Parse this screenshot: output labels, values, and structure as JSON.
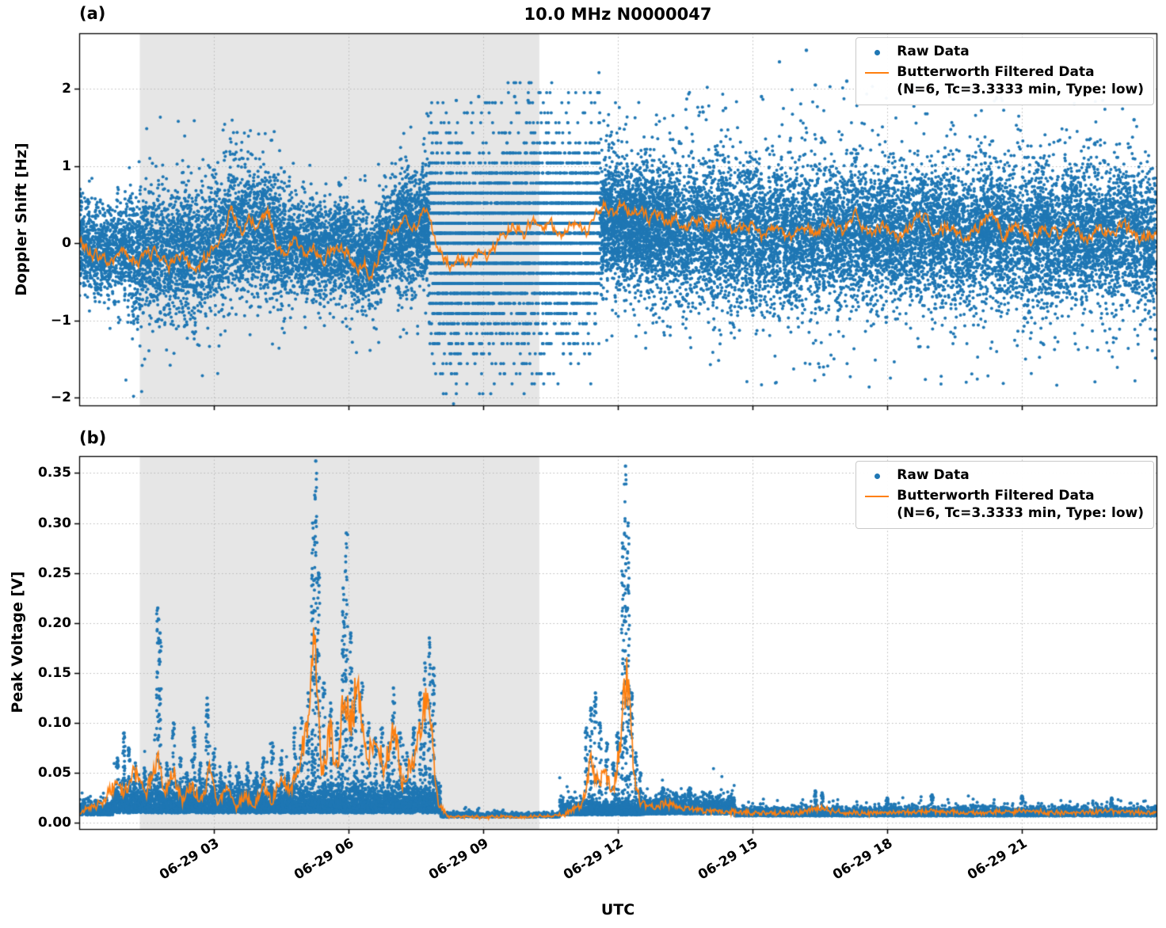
{
  "figure": {
    "title": "10.0 MHz N0000047",
    "xlabel": "UTC",
    "panel_labels": [
      "(a)",
      "(b)"
    ],
    "legend": {
      "raw_label": "Raw Data",
      "filtered_label": "Butterworth Filtered Data",
      "filtered_sublabel": "(N=6, Tc=3.3333 min, Type: low)"
    },
    "colors": {
      "raw": "#1f77b4",
      "filtered": "#ff7f0e",
      "shade": "#e6e6e6",
      "grid": "#b8b8b8",
      "spine": "#000000"
    }
  },
  "chart_data": [
    {
      "type": "scatter",
      "panel": "a",
      "ylabel": "Doppler Shift [Hz]",
      "ylim": [
        -2.1,
        2.72
      ],
      "yticks": [
        -2,
        -1,
        0,
        1,
        2
      ],
      "ytick_labels": [
        "−2",
        "−1",
        "0",
        "1",
        "2"
      ],
      "xlim_hours": [
        0,
        24
      ],
      "xticks_hours": [
        3,
        6,
        9,
        12,
        15,
        18,
        21
      ],
      "xtick_labels": [
        "06-29 03",
        "06-29 06",
        "06-29 09",
        "06-29 12",
        "06-29 15",
        "06-29 18",
        "06-29 21"
      ],
      "shaded_region_hours": [
        1.35,
        10.25
      ],
      "grid": true,
      "legend_position": "upper right",
      "series_names": [
        "Raw Data",
        "Butterworth Filtered Data (N=6, Tc=3.3333 min, Type: low)"
      ],
      "raw_scatter_segments": [
        {
          "t0": 0.0,
          "t1": 1.0,
          "n": 800,
          "std": 0.3,
          "outlier_frac": 0.01,
          "outlier_max": 1.2
        },
        {
          "t0": 1.0,
          "t1": 3.1,
          "n": 1900,
          "std": 0.4,
          "outlier_frac": 0.02,
          "outlier_max": 1.9
        },
        {
          "t0": 3.1,
          "t1": 4.6,
          "n": 1400,
          "std": 0.42,
          "outlier_frac": 0.015,
          "outlier_max": 1.5
        },
        {
          "t0": 4.6,
          "t1": 6.3,
          "n": 1500,
          "std": 0.33,
          "outlier_frac": 0.01,
          "outlier_max": 1.3
        },
        {
          "t0": 6.3,
          "t1": 7.1,
          "n": 700,
          "std": 0.3,
          "outlier_frac": 0.01,
          "outlier_max": 1.2
        },
        {
          "t0": 7.1,
          "t1": 7.8,
          "n": 900,
          "std": 0.38,
          "outlier_frac": 0.02,
          "outlier_max": 1.6
        },
        {
          "t0": 7.8,
          "t1": 11.6,
          "n": 5200,
          "std": 0.58,
          "quantize": 0.13,
          "outlier_frac": 0.03,
          "outlier_max": 1.95
        },
        {
          "t0": 11.6,
          "t1": 13.2,
          "n": 2300,
          "std": 0.4,
          "outlier_frac": 0.015,
          "outlier_max": 1.6
        },
        {
          "t0": 13.2,
          "t1": 24.0,
          "n": 11000,
          "std": 0.45,
          "outlier_frac": 0.02,
          "outlier_max": 1.95
        }
      ],
      "raw_extra_points": [
        [
          15.6,
          2.35
        ],
        [
          16.2,
          2.5
        ],
        [
          16.4,
          2.05
        ],
        [
          17.1,
          2.1
        ],
        [
          15.2,
          1.9
        ],
        [
          18.6,
          1.95
        ],
        [
          19.4,
          1.9
        ],
        [
          20.3,
          2.2
        ],
        [
          21.0,
          2.0
        ],
        [
          22.8,
          1.85
        ],
        [
          23.5,
          1.6
        ],
        [
          14.4,
          1.75
        ],
        [
          13.9,
          1.7
        ],
        [
          9.7,
          1.9
        ],
        [
          10.0,
          1.85
        ],
        [
          8.4,
          1.85
        ],
        [
          8.9,
          1.9
        ]
      ],
      "filtered_line_points": [
        [
          0,
          0.05
        ],
        [
          0.3,
          -0.15
        ],
        [
          0.7,
          -0.2
        ],
        [
          1,
          -0.1
        ],
        [
          1.3,
          -0.25
        ],
        [
          1.7,
          -0.1
        ],
        [
          2,
          -0.3
        ],
        [
          2.3,
          -0.15
        ],
        [
          2.6,
          -0.35
        ],
        [
          2.9,
          -0.1
        ],
        [
          3.2,
          0.1
        ],
        [
          3.4,
          0.45
        ],
        [
          3.6,
          0.1
        ],
        [
          3.8,
          0.35
        ],
        [
          4,
          0.2
        ],
        [
          4.2,
          0.45
        ],
        [
          4.4,
          0
        ],
        [
          4.6,
          -0.15
        ],
        [
          4.8,
          0.1
        ],
        [
          5,
          -0.2
        ],
        [
          5.2,
          -0.05
        ],
        [
          5.4,
          -0.25
        ],
        [
          5.6,
          -0.1
        ],
        [
          5.8,
          -0.05
        ],
        [
          6,
          -0.15
        ],
        [
          6.2,
          -0.4
        ],
        [
          6.35,
          -0.2
        ],
        [
          6.5,
          -0.5
        ],
        [
          6.7,
          -0.1
        ],
        [
          6.9,
          0.15
        ],
        [
          7.1,
          0.25
        ],
        [
          7.3,
          0.35
        ],
        [
          7.5,
          0.2
        ],
        [
          7.7,
          0.45
        ],
        [
          7.9,
          0.1
        ],
        [
          8.1,
          -0.15
        ],
        [
          8.3,
          -0.3
        ],
        [
          8.5,
          -0.2
        ],
        [
          8.7,
          -0.25
        ],
        [
          8.9,
          -0.1
        ],
        [
          9.1,
          -0.2
        ],
        [
          9.3,
          0
        ],
        [
          9.5,
          0.15
        ],
        [
          9.7,
          0.25
        ],
        [
          9.9,
          0.1
        ],
        [
          10.1,
          0.3
        ],
        [
          10.3,
          0.15
        ],
        [
          10.5,
          0.25
        ],
        [
          10.7,
          0.1
        ],
        [
          10.9,
          0.2
        ],
        [
          11.1,
          0.3
        ],
        [
          11.3,
          0.15
        ],
        [
          11.5,
          0.35
        ],
        [
          11.7,
          0.5
        ],
        [
          11.9,
          0.4
        ],
        [
          12.1,
          0.55
        ],
        [
          12.3,
          0.35
        ],
        [
          12.5,
          0.45
        ],
        [
          12.7,
          0.3
        ],
        [
          12.9,
          0.4
        ],
        [
          13.1,
          0.25
        ],
        [
          13.3,
          0.35
        ],
        [
          13.5,
          0.2
        ],
        [
          13.7,
          0.3
        ],
        [
          14,
          0.2
        ],
        [
          14.3,
          0.3
        ],
        [
          14.6,
          0.15
        ],
        [
          14.9,
          0.25
        ],
        [
          15.2,
          0.1
        ],
        [
          15.5,
          0.2
        ],
        [
          15.8,
          0.05
        ],
        [
          16.1,
          0.25
        ],
        [
          16.4,
          0.1
        ],
        [
          16.7,
          0.3
        ],
        [
          17,
          0.15
        ],
        [
          17.3,
          0.35
        ],
        [
          17.6,
          0.1
        ],
        [
          17.9,
          0.25
        ],
        [
          18.2,
          0.05
        ],
        [
          18.5,
          0.2
        ],
        [
          18.8,
          0.35
        ],
        [
          19.1,
          0.1
        ],
        [
          19.4,
          0.25
        ],
        [
          19.7,
          0.05
        ],
        [
          20,
          0.2
        ],
        [
          20.3,
          0.4
        ],
        [
          20.6,
          0.1
        ],
        [
          20.9,
          0.25
        ],
        [
          21.2,
          0.05
        ],
        [
          21.5,
          0.2
        ],
        [
          21.8,
          0.1
        ],
        [
          22.1,
          0.3
        ],
        [
          22.4,
          0.05
        ],
        [
          22.7,
          0.2
        ],
        [
          23,
          0.1
        ],
        [
          23.3,
          0.25
        ],
        [
          23.6,
          0.05
        ],
        [
          24,
          0.15
        ]
      ]
    },
    {
      "type": "scatter",
      "panel": "b",
      "ylabel": "Peak Voltage [V]",
      "ylim": [
        -0.006,
        0.367
      ],
      "yticks": [
        0.0,
        0.05,
        0.1,
        0.15,
        0.2,
        0.25,
        0.3,
        0.35
      ],
      "ytick_labels": [
        "0.00",
        "0.05",
        "0.10",
        "0.15",
        "0.20",
        "0.25",
        "0.30",
        "0.35"
      ],
      "xlim_hours": [
        0,
        24
      ],
      "xticks_hours": [
        3,
        6,
        9,
        12,
        15,
        18,
        21
      ],
      "xtick_labels": [
        "06-29 03",
        "06-29 06",
        "06-29 09",
        "06-29 12",
        "06-29 15",
        "06-29 18",
        "06-29 21"
      ],
      "shaded_region_hours": [
        1.35,
        10.25
      ],
      "grid": true,
      "legend_position": "upper right",
      "series_names": [
        "Raw Data",
        "Butterworth Filtered Data (N=6, Tc=3.3333 min, Type: low)"
      ],
      "baseline_segments": [
        {
          "t0": 0.0,
          "t1": 0.75,
          "n": 500,
          "base": 0.008,
          "spread": 0.006
        },
        {
          "t0": 0.75,
          "t1": 8.05,
          "n": 5200,
          "base": 0.01,
          "spread": 0.013
        },
        {
          "t0": 8.05,
          "t1": 10.7,
          "n": 900,
          "base": 0.006,
          "spread": 0.002
        },
        {
          "t0": 10.7,
          "t1": 12.6,
          "n": 1200,
          "base": 0.008,
          "spread": 0.007
        },
        {
          "t0": 12.6,
          "t1": 14.6,
          "n": 1400,
          "base": 0.009,
          "spread": 0.008
        },
        {
          "t0": 14.6,
          "t1": 24.0,
          "n": 4800,
          "base": 0.007,
          "spread": 0.004
        }
      ],
      "spikes": [
        [
          0.85,
          0.065
        ],
        [
          1.0,
          0.09
        ],
        [
          1.1,
          0.075
        ],
        [
          1.25,
          0.06
        ],
        [
          1.45,
          0.055
        ],
        [
          1.6,
          0.05
        ],
        [
          1.75,
          0.215
        ],
        [
          1.8,
          0.19
        ],
        [
          1.95,
          0.06
        ],
        [
          2.1,
          0.1
        ],
        [
          2.25,
          0.065
        ],
        [
          2.4,
          0.05
        ],
        [
          2.55,
          0.095
        ],
        [
          2.7,
          0.06
        ],
        [
          2.85,
          0.125
        ],
        [
          3.0,
          0.07
        ],
        [
          3.15,
          0.05
        ],
        [
          3.35,
          0.06
        ],
        [
          3.55,
          0.05
        ],
        [
          3.75,
          0.06
        ],
        [
          3.95,
          0.05
        ],
        [
          4.1,
          0.065
        ],
        [
          4.3,
          0.08
        ],
        [
          4.5,
          0.065
        ],
        [
          4.65,
          0.05
        ],
        [
          4.8,
          0.095
        ],
        [
          4.95,
          0.105
        ],
        [
          5.1,
          0.13
        ],
        [
          5.2,
          0.3
        ],
        [
          5.27,
          0.362
        ],
        [
          5.33,
          0.25
        ],
        [
          5.45,
          0.14
        ],
        [
          5.6,
          0.12
        ],
        [
          5.75,
          0.1
        ],
        [
          5.88,
          0.235
        ],
        [
          5.95,
          0.29
        ],
        [
          6.05,
          0.19
        ],
        [
          6.15,
          0.135
        ],
        [
          6.3,
          0.14
        ],
        [
          6.45,
          0.1
        ],
        [
          6.6,
          0.085
        ],
        [
          6.75,
          0.095
        ],
        [
          6.9,
          0.08
        ],
        [
          7.0,
          0.135
        ],
        [
          7.15,
          0.09
        ],
        [
          7.3,
          0.07
        ],
        [
          7.45,
          0.095
        ],
        [
          7.6,
          0.13
        ],
        [
          7.7,
          0.16
        ],
        [
          7.8,
          0.185
        ],
        [
          7.9,
          0.155
        ],
        [
          11.3,
          0.095
        ],
        [
          11.4,
          0.115
        ],
        [
          11.5,
          0.13
        ],
        [
          11.6,
          0.1
        ],
        [
          11.75,
          0.08
        ],
        [
          11.9,
          0.06
        ],
        [
          12.0,
          0.09
        ],
        [
          12.1,
          0.28
        ],
        [
          12.17,
          0.357
        ],
        [
          12.23,
          0.3
        ],
        [
          12.3,
          0.13
        ],
        [
          12.4,
          0.07
        ],
        [
          12.5,
          0.05
        ],
        [
          13.0,
          0.035
        ],
        [
          13.3,
          0.03
        ],
        [
          13.6,
          0.035
        ],
        [
          16.4,
          0.032
        ],
        [
          16.55,
          0.03
        ],
        [
          18.0,
          0.025
        ],
        [
          19.0,
          0.028
        ],
        [
          21.0,
          0.027
        ],
        [
          23.0,
          0.025
        ]
      ],
      "filtered_line_points": [
        [
          0,
          0.01
        ],
        [
          0.5,
          0.02
        ],
        [
          0.8,
          0.04
        ],
        [
          1,
          0.03
        ],
        [
          1.2,
          0.05
        ],
        [
          1.5,
          0.03
        ],
        [
          1.75,
          0.065
        ],
        [
          1.9,
          0.03
        ],
        [
          2.1,
          0.05
        ],
        [
          2.3,
          0.02
        ],
        [
          2.5,
          0.04
        ],
        [
          2.7,
          0.02
        ],
        [
          2.9,
          0.05
        ],
        [
          3.1,
          0.02
        ],
        [
          3.3,
          0.04
        ],
        [
          3.5,
          0.015
        ],
        [
          3.7,
          0.03
        ],
        [
          3.9,
          0.015
        ],
        [
          4.1,
          0.04
        ],
        [
          4.3,
          0.02
        ],
        [
          4.5,
          0.05
        ],
        [
          4.7,
          0.03
        ],
        [
          4.9,
          0.06
        ],
        [
          5.1,
          0.1
        ],
        [
          5.25,
          0.18
        ],
        [
          5.4,
          0.05
        ],
        [
          5.6,
          0.09
        ],
        [
          5.75,
          0.05
        ],
        [
          5.9,
          0.135
        ],
        [
          6.05,
          0.1
        ],
        [
          6.2,
          0.135
        ],
        [
          6.4,
          0.06
        ],
        [
          6.6,
          0.09
        ],
        [
          6.8,
          0.05
        ],
        [
          7,
          0.1
        ],
        [
          7.2,
          0.04
        ],
        [
          7.4,
          0.06
        ],
        [
          7.6,
          0.09
        ],
        [
          7.75,
          0.14
        ],
        [
          7.9,
          0.06
        ],
        [
          8,
          0.02
        ],
        [
          8.2,
          0.007
        ],
        [
          9,
          0.006
        ],
        [
          10,
          0.006
        ],
        [
          10.8,
          0.008
        ],
        [
          11.2,
          0.02
        ],
        [
          11.4,
          0.06
        ],
        [
          11.55,
          0.04
        ],
        [
          11.7,
          0.05
        ],
        [
          11.9,
          0.03
        ],
        [
          12.05,
          0.08
        ],
        [
          12.2,
          0.155
        ],
        [
          12.35,
          0.05
        ],
        [
          12.5,
          0.02
        ],
        [
          12.8,
          0.015
        ],
        [
          13.1,
          0.02
        ],
        [
          13.4,
          0.015
        ],
        [
          14,
          0.012
        ],
        [
          15,
          0.01
        ],
        [
          16,
          0.01
        ],
        [
          16.5,
          0.015
        ],
        [
          17,
          0.01
        ],
        [
          18,
          0.01
        ],
        [
          19,
          0.012
        ],
        [
          20,
          0.01
        ],
        [
          21,
          0.012
        ],
        [
          22,
          0.01
        ],
        [
          23,
          0.012
        ],
        [
          24,
          0.01
        ]
      ]
    }
  ]
}
